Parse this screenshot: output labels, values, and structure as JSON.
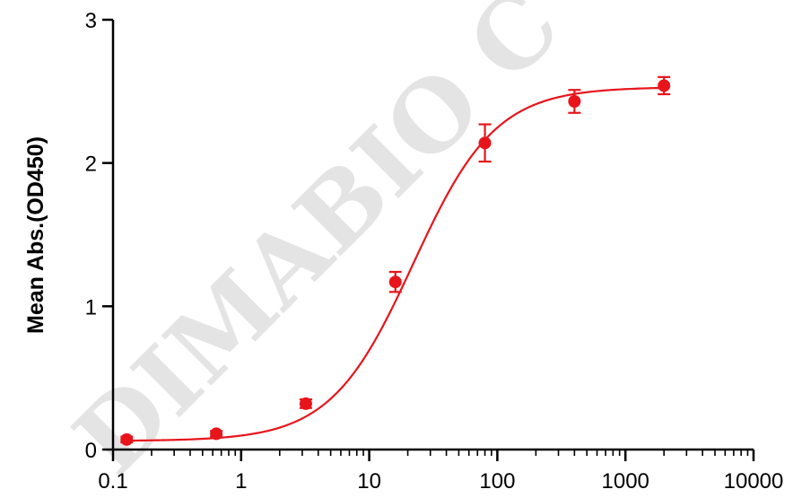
{
  "watermark": "DIMABIO C",
  "chart_data": {
    "type": "scatter",
    "title": "",
    "xlabel": "",
    "ylabel": "Mean Abs.(OD450)",
    "x_scale": "log",
    "xlim": [
      0.1,
      10000
    ],
    "ylim": [
      0,
      3
    ],
    "x_ticks": [
      0.1,
      1,
      10,
      100,
      1000,
      10000
    ],
    "x_tick_labels": [
      "0.1",
      "1",
      "10",
      "100",
      "1000",
      "10000"
    ],
    "y_ticks": [
      0,
      1,
      2,
      3
    ],
    "y_tick_labels": [
      "0",
      "1",
      "2",
      "3"
    ],
    "grid": false,
    "legend": "none",
    "color": "#e8141b",
    "series": [
      {
        "x": [
          0.128,
          0.64,
          3.2,
          16,
          80,
          400,
          2000
        ],
        "y": [
          0.07,
          0.11,
          0.32,
          1.17,
          2.14,
          2.43,
          2.54
        ],
        "error": [
          0.02,
          0.02,
          0.03,
          0.07,
          0.13,
          0.08,
          0.06
        ]
      }
    ],
    "fit": {
      "model": "4PL",
      "bottom": 0.06,
      "top": 2.53,
      "ec50": 22,
      "hill": 1.35
    }
  }
}
